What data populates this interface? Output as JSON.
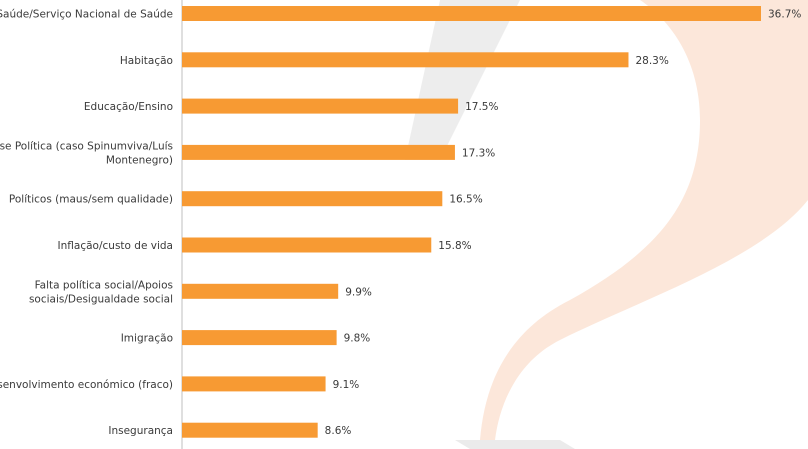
{
  "chart_data": {
    "type": "bar",
    "orientation": "horizontal",
    "categories": [
      [
        "Saúde/Serviço Nacional de Saúde"
      ],
      [
        "Habitação"
      ],
      [
        "Educação/Ensino"
      ],
      [
        "Crise Política (caso Spinumviva/Luís",
        "Montenegro)"
      ],
      [
        "Políticos (maus/sem qualidade)"
      ],
      [
        "Inflação/custo de vida"
      ],
      [
        "Falta política social/Apoios",
        "sociais/Desigualdade social"
      ],
      [
        "Imigração"
      ],
      [
        "Desenvolvimento económico (fraco)"
      ],
      [
        "Insegurança"
      ]
    ],
    "values": [
      36.7,
      28.3,
      17.5,
      17.3,
      16.5,
      15.8,
      9.9,
      9.8,
      9.1,
      8.6
    ],
    "value_labels": [
      "36.7%",
      "28.3%",
      "17.5%",
      "17.3%",
      "16.5%",
      "15.8%",
      "9.9%",
      "9.8%",
      "9.1%",
      "8.6%"
    ],
    "xlim": [
      0,
      40
    ],
    "grid": false,
    "bar_color": "#f79a33",
    "watermark_color": "#fbe3d3",
    "watermark_grey": "#e6e6e6",
    "axis_color": "#bfbfbf"
  }
}
